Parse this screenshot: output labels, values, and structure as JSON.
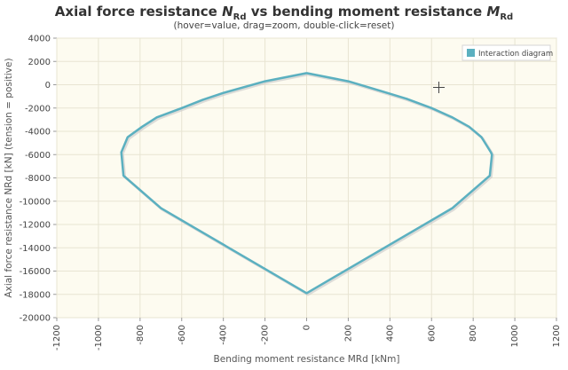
{
  "header": {
    "title_prefix": "Axial force resistance ",
    "title_n": "N",
    "title_n_sub": "Rd",
    "title_mid": " vs bending moment resistance ",
    "title_m": "M",
    "title_m_sub": "Rd",
    "subtitle": "(hover=value, drag=zoom, double-click=reset)"
  },
  "colors": {
    "line": "#5bb0c0",
    "plot_bg": "#fdfbf0",
    "shadow": "#c8c8c8"
  },
  "chart_data": {
    "type": "line",
    "title": "Axial force resistance NRd vs bending moment resistance MRd",
    "xlabel": "Bending moment resistance MRd [kNm]",
    "ylabel": "Axial force resistance NRd [kN] (tension = positive)",
    "xlim": [
      -1200,
      1200
    ],
    "ylim": [
      -20000,
      4000
    ],
    "xticks": [
      -1200,
      -1000,
      -800,
      -600,
      -400,
      -200,
      0,
      200,
      400,
      600,
      800,
      1000,
      1200
    ],
    "yticks": [
      4000,
      2000,
      0,
      -2000,
      -4000,
      -6000,
      -8000,
      -10000,
      -12000,
      -14000,
      -16000,
      -18000,
      -20000
    ],
    "legend": "top-right",
    "series": [
      {
        "name": "Interaction diagram",
        "x": [
          0,
          200,
          350,
          480,
          600,
          700,
          780,
          840,
          885,
          890,
          880,
          700,
          0,
          -700,
          -880,
          -890,
          -860,
          -790,
          -720,
          -600,
          -500,
          -400,
          -200,
          0
        ],
        "y": [
          1000,
          300,
          -500,
          -1200,
          -2000,
          -2800,
          -3600,
          -4500,
          -5800,
          -6000,
          -7800,
          -10600,
          -17900,
          -10600,
          -7800,
          -5800,
          -4500,
          -3600,
          -2800,
          -2000,
          -1300,
          -700,
          300,
          1000
        ]
      }
    ]
  }
}
